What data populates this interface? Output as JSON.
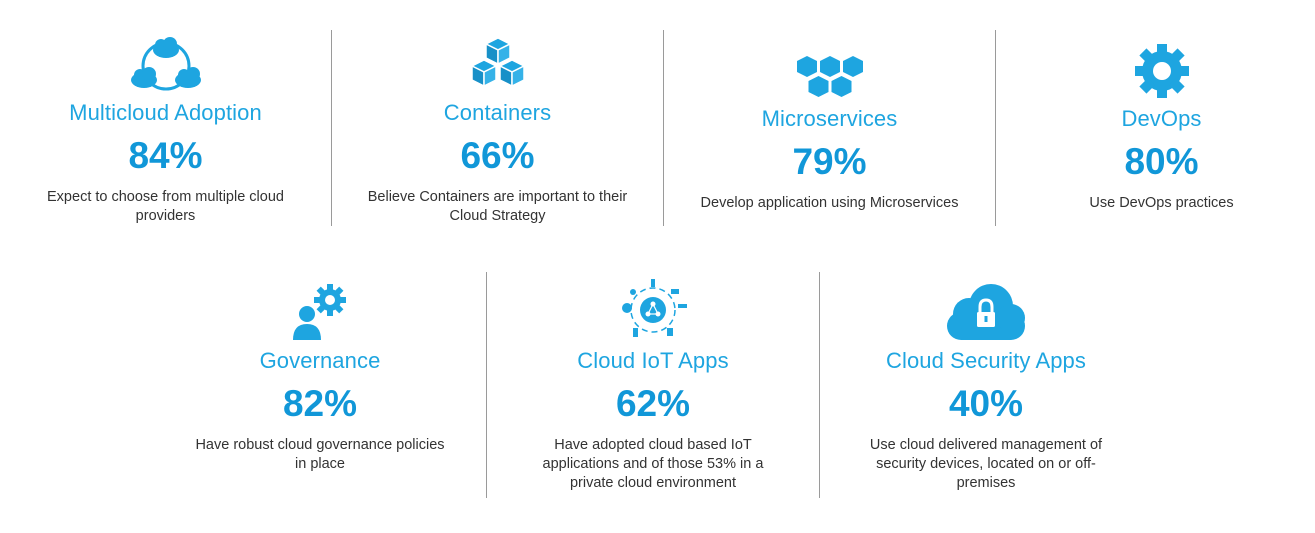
{
  "colors": {
    "accent": "#1ea5e0",
    "percent": "#1197d8",
    "text": "#333333",
    "divider": "#9a9a9a"
  },
  "cards": [
    {
      "title": "Multicloud  Adoption",
      "percent": "84%",
      "description": "Expect to choose from multiple cloud providers",
      "icon": "multicloud-icon"
    },
    {
      "title": "Containers",
      "percent": "66%",
      "description": "Believe Containers are important to their Cloud Strategy",
      "icon": "containers-cubes-icon"
    },
    {
      "title": "Microservices",
      "percent": "79%",
      "description": "Develop application using Microservices",
      "icon": "hexagons-icon"
    },
    {
      "title": "DevOps",
      "percent": "80%",
      "description": "Use DevOps practices",
      "icon": "gear-icon"
    },
    {
      "title": "Governance",
      "percent": "82%",
      "description": "Have robust cloud governance policies in place",
      "icon": "person-gear-icon"
    },
    {
      "title": "Cloud  IoT Apps",
      "percent": "62%",
      "description": "Have adopted cloud based IoT applications and of those 53% in a private cloud environment",
      "icon": "iot-network-icon"
    },
    {
      "title": "Cloud  Security Apps",
      "percent": "40%",
      "description": "Use cloud delivered management of security devices, located on or off-premises",
      "icon": "cloud-lock-icon"
    }
  ]
}
